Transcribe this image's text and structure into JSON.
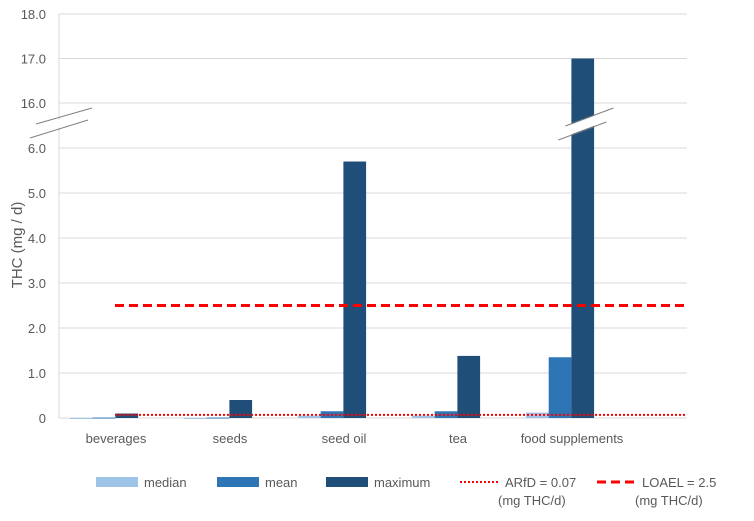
{
  "chart_data": {
    "type": "bar",
    "ylabel": "THC (mg / d)",
    "categories": [
      "beverages",
      "seeds",
      "seed oil",
      "tea",
      "food supplements"
    ],
    "series": [
      {
        "name": "median",
        "color": "#9dc3e6",
        "values": [
          0.0,
          0.0,
          0.05,
          0.05,
          0.12
        ]
      },
      {
        "name": "mean",
        "color": "#2e75b6",
        "values": [
          0.01,
          0.01,
          0.15,
          0.15,
          1.35
        ]
      },
      {
        "name": "maximum",
        "color": "#1f4e79",
        "values": [
          0.1,
          0.4,
          5.7,
          1.38,
          17.0
        ]
      }
    ],
    "reference_lines": [
      {
        "name": "ARfD = 0.07",
        "unit": "(mg THC/d)",
        "value": 0.07,
        "color": "#ff0000",
        "style": "dotted"
      },
      {
        "name": "LOAEL = 2.5",
        "unit": "(mg THC/d)",
        "value": 2.5,
        "color": "#ff0000",
        "style": "dashed"
      }
    ],
    "y_ticks_lower": [
      "0",
      "1.0",
      "2.0",
      "3.0",
      "4.0",
      "5.0",
      "6.0"
    ],
    "y_ticks_upper": [
      "16.0",
      "17.0",
      "18.0"
    ],
    "ylim_lower": [
      0,
      6.5
    ],
    "ylim_upper": [
      15.5,
      18
    ],
    "axis_break": true,
    "grid": true,
    "legend_position": "bottom"
  }
}
